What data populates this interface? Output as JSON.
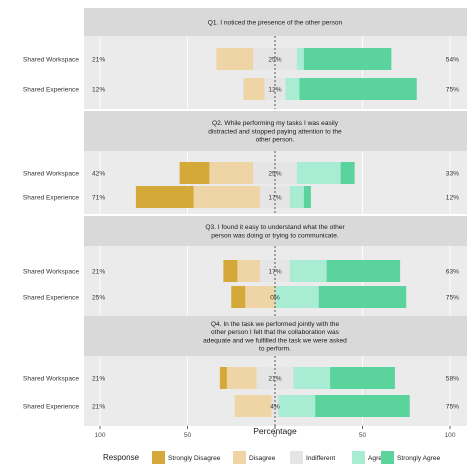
{
  "chart_data": {
    "type": "bar",
    "subtype": "diverging-stacked-horizontal",
    "xlabel": "Percentage",
    "xticks": [
      100,
      50,
      0,
      50,
      100
    ],
    "xlim": [
      -100,
      100
    ],
    "legend": {
      "title": "Response",
      "position": "bottom",
      "items": [
        "Strongly Disagree",
        "Disagree",
        "Indifferent",
        "Agree",
        "Strongly Agree"
      ]
    },
    "colors": {
      "Strongly Disagree": "#d4a93a",
      "Disagree": "#efd5a6",
      "Indifferent": "#e5e5e5",
      "Agree": "#a8ecd3",
      "Strongly Agree": "#5bd39d"
    },
    "categories": [
      "Shared Workspace",
      "Shared Experience"
    ],
    "panels": [
      {
        "title": "Q1. I noticed the presence of the other person",
        "rows": [
          {
            "label": "Shared Workspace",
            "values": [
              0,
              21,
              25,
              4,
              50
            ],
            "left_pct": "21%",
            "mid_pct": "25%",
            "right_pct": "54%"
          },
          {
            "label": "Shared Experience",
            "values": [
              0,
              12,
              12,
              8,
              67
            ],
            "left_pct": "12%",
            "mid_pct": "12%",
            "right_pct": "75%"
          }
        ]
      },
      {
        "title": "Q2. While performing my tasks I was easily distracted and stopped paying attention to the other person.",
        "rows": [
          {
            "label": "Shared Workspace",
            "values": [
              17,
              25,
              25,
              25,
              8
            ],
            "left_pct": "42%",
            "mid_pct": "25%",
            "right_pct": "33%"
          },
          {
            "label": "Shared Experience",
            "values": [
              33,
              38,
              17,
              8,
              4
            ],
            "left_pct": "71%",
            "mid_pct": "17%",
            "right_pct": "12%"
          }
        ]
      },
      {
        "title": "Q3. I found it easy to understand what the other person was doing or trying to communicate.",
        "rows": [
          {
            "label": "Shared Workspace",
            "values": [
              8,
              13,
              17,
              21,
              42
            ],
            "left_pct": "21%",
            "mid_pct": "17%",
            "right_pct": "63%"
          },
          {
            "label": "Shared Experience",
            "values": [
              8,
              17,
              0,
              25,
              50
            ],
            "left_pct": "25%",
            "mid_pct": "0%",
            "right_pct": "75%"
          }
        ]
      },
      {
        "title": "Q4. In the task we performed jointly with the other person I felt that the collaboration was adequate and we fulfilled the task we were asked to perform.",
        "rows": [
          {
            "label": "Shared Workspace",
            "values": [
              4,
              17,
              21,
              21,
              37
            ],
            "left_pct": "21%",
            "mid_pct": "21%",
            "right_pct": "58%"
          },
          {
            "label": "Shared Experience",
            "values": [
              0,
              21,
              4,
              21,
              54
            ],
            "left_pct": "21%",
            "mid_pct": "4%",
            "right_pct": "75%"
          }
        ]
      }
    ],
    "panel_titles_lines": [
      [
        "Q1. I noticed the presence of the other person"
      ],
      [
        "Q2. While performing my tasks I was easily",
        "distracted and stopped paying attention to the",
        "other person."
      ],
      [
        "Q3. I found it easy to understand what the other",
        "person was doing or trying to communicate."
      ],
      [
        "Q4. In the task we performed jointly with the",
        "other person I felt that the collaboration was",
        "adequate and we fulfilled the task we were asked",
        "to perform."
      ]
    ]
  }
}
